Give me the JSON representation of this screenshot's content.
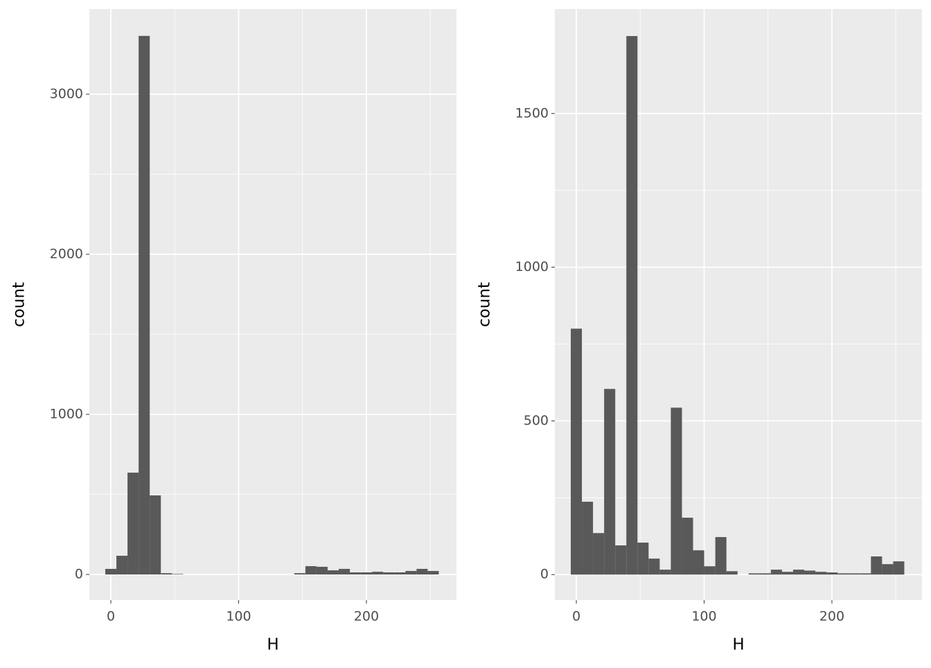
{
  "chart_data": [
    {
      "type": "histogram",
      "x_label": "H",
      "y_label": "count",
      "color": "#595959",
      "bins": [
        -4.35,
        4.35,
        13.05,
        21.75,
        30.45,
        39.15,
        47.85,
        56.55,
        65.25,
        73.95,
        82.65,
        91.35,
        100.05,
        108.75,
        117.45,
        126.15,
        134.85,
        143.55,
        152.25,
        160.95,
        169.65,
        178.35,
        187.05,
        195.75,
        204.45,
        213.15,
        221.85,
        230.55,
        239.25,
        247.95,
        256.65
      ],
      "values": [
        35,
        117,
        636,
        3364,
        494,
        8,
        3,
        0,
        0,
        0,
        0,
        0,
        0,
        0,
        0,
        0,
        0,
        8,
        52,
        48,
        26,
        35,
        13,
        13,
        17,
        13,
        13,
        22,
        35,
        22
      ],
      "xlim": [
        -16.8,
        270.5
      ],
      "ylim": [
        -160,
        3532
      ],
      "xticks": [
        0,
        100,
        200
      ],
      "yticks": [
        0,
        1000,
        2000,
        3000
      ],
      "x_minor_ticks": [
        50,
        150,
        250
      ],
      "y_minor_ticks": [
        500,
        1500,
        2500
      ],
      "grid": true
    },
    {
      "type": "histogram",
      "x_label": "H",
      "y_label": "count",
      "color": "#595959",
      "bins": [
        -4.35,
        4.35,
        13.05,
        21.75,
        30.45,
        39.15,
        47.85,
        56.55,
        65.25,
        73.95,
        82.65,
        91.35,
        100.05,
        108.75,
        117.45,
        126.15,
        134.85,
        143.55,
        152.25,
        160.95,
        169.65,
        178.35,
        187.05,
        195.75,
        204.45,
        213.15,
        221.85,
        230.55,
        239.25,
        247.95,
        256.65
      ],
      "values": [
        800,
        237,
        135,
        604,
        95,
        1752,
        104,
        52,
        16,
        543,
        185,
        79,
        27,
        122,
        11,
        0,
        4,
        4,
        16,
        9,
        16,
        13,
        9,
        7,
        4,
        4,
        4,
        59,
        34,
        43
      ],
      "xlim": [
        -16.8,
        270.5
      ],
      "ylim": [
        -83,
        1840
      ],
      "xticks": [
        0,
        100,
        200
      ],
      "yticks": [
        0,
        500,
        1000,
        1500
      ],
      "x_minor_ticks": [
        50,
        150,
        250
      ],
      "y_minor_ticks": [
        250,
        750,
        1250
      ],
      "grid": true
    }
  ]
}
